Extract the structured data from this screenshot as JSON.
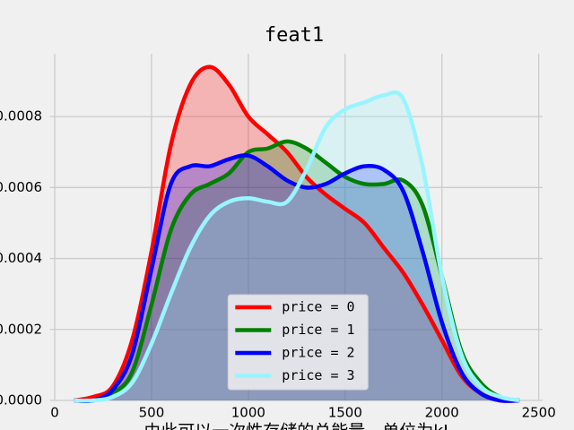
{
  "chart_data": {
    "type": "kde",
    "title": "feat1",
    "x_label": "由此可以一次性存储的总能量，单位为kJ",
    "x": [
      100,
      200,
      300,
      400,
      500,
      600,
      700,
      800,
      900,
      1000,
      1100,
      1200,
      1300,
      1400,
      1500,
      1600,
      1700,
      1800,
      1900,
      2000,
      2100,
      2200,
      2300,
      2400
    ],
    "series": [
      {
        "name": "price = 0",
        "color": "#ff0000",
        "values": [
          0,
          1e-05,
          4e-05,
          0.00017,
          0.00042,
          0.00072,
          0.00089,
          0.00094,
          0.00089,
          0.0008,
          0.00075,
          0.0007,
          0.00063,
          0.00058,
          0.00054,
          0.0005,
          0.00043,
          0.00036,
          0.00027,
          0.00017,
          7e-05,
          2e-05,
          0,
          0
        ]
      },
      {
        "name": "price = 1",
        "color": "#008000",
        "values": [
          0,
          0,
          2e-05,
          8e-05,
          0.00027,
          0.00048,
          0.00058,
          0.00061,
          0.00064,
          0.0007,
          0.00071,
          0.00073,
          0.00071,
          0.00067,
          0.00063,
          0.00061,
          0.00061,
          0.00062,
          0.00055,
          0.00035,
          0.00014,
          5e-05,
          1e-05,
          0
        ]
      },
      {
        "name": "price = 2",
        "color": "#0000ff",
        "values": [
          0,
          0,
          3e-05,
          0.00013,
          0.00037,
          0.00061,
          0.00066,
          0.00066,
          0.00068,
          0.00069,
          0.00066,
          0.00062,
          0.0006,
          0.00061,
          0.00064,
          0.00066,
          0.00065,
          0.00059,
          0.00042,
          0.00022,
          8e-05,
          2e-05,
          0,
          0
        ]
      },
      {
        "name": "price = 3",
        "color": "#98f5ff",
        "values": [
          0,
          0,
          1e-05,
          5e-05,
          0.00016,
          0.0003,
          0.00043,
          0.00052,
          0.00056,
          0.00057,
          0.00056,
          0.00056,
          0.00065,
          0.00077,
          0.00082,
          0.00084,
          0.00086,
          0.00085,
          0.00066,
          0.00035,
          0.00013,
          4e-05,
          1e-05,
          0
        ]
      }
    ],
    "xlim": [
      -25,
      2520
    ],
    "ylim": [
      0,
      0.000977
    ],
    "xticks": [
      0,
      500,
      1000,
      1500,
      2000,
      2500
    ],
    "yticks": [
      {
        "value": 0,
        "label": "0.0000"
      },
      {
        "value": 0.0002,
        "label": "0.0002"
      },
      {
        "value": 0.0004,
        "label": "0.0004"
      },
      {
        "value": 0.0006,
        "label": "0.0006"
      },
      {
        "value": 0.0008,
        "label": "0.0008"
      }
    ],
    "grid": true,
    "legend": "lower center"
  }
}
